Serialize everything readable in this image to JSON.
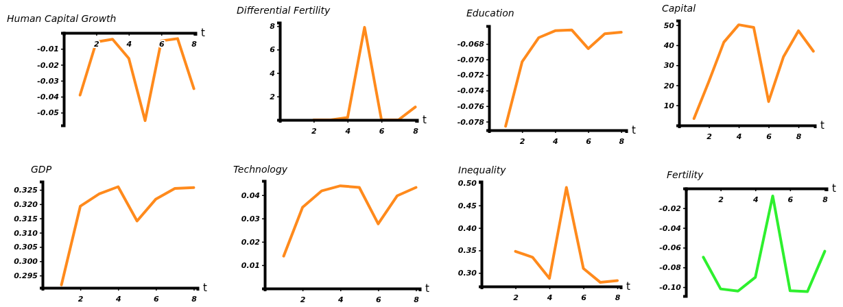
{
  "chart_data": [
    {
      "type": "line",
      "title": "Human Capital Growth",
      "xlabel": "t",
      "x": [
        1,
        2,
        3,
        4,
        5,
        6,
        7,
        8
      ],
      "values": [
        -0.039,
        -0.0057,
        -0.004,
        -0.016,
        -0.055,
        -0.005,
        -0.0036,
        -0.035
      ],
      "color": "#ff8a1c",
      "xlim": [
        0,
        8.1
      ],
      "xticks": [
        2,
        4,
        6,
        8
      ],
      "ylim": [
        -0.058,
        0
      ],
      "yticks": [
        -0.05,
        -0.04,
        -0.03,
        -0.02,
        -0.01
      ]
    },
    {
      "type": "line",
      "title": "Differential Fertility",
      "xlabel": "t",
      "x": [
        2,
        3,
        4,
        5,
        6,
        7,
        8
      ],
      "values": [
        0,
        0,
        0.2,
        7.9,
        0,
        0,
        1.1
      ],
      "color": "#ff8a1c",
      "xlim": [
        0,
        8.1
      ],
      "xticks": [
        2,
        4,
        6,
        8
      ],
      "ylim": [
        0,
        8.3
      ],
      "yticks": [
        2,
        4,
        6,
        8
      ]
    },
    {
      "type": "line",
      "title": "Education",
      "xlabel": "t",
      "x": [
        1,
        2,
        3,
        4,
        5,
        6,
        7,
        8
      ],
      "values": [
        -0.0786,
        -0.0703,
        -0.0672,
        -0.0663,
        -0.0662,
        -0.0686,
        -0.0667,
        -0.0665
      ],
      "color": "#ff8a1c",
      "xlim": [
        0,
        8.3
      ],
      "xticks": [
        2,
        4,
        6,
        8
      ],
      "ylim": [
        -0.0791,
        -0.0657
      ],
      "yticks": [
        -0.078,
        -0.076,
        -0.074,
        -0.072,
        {
          "value": -0.07,
          "label": "-0.070"
        },
        -0.068
      ]
    },
    {
      "type": "line",
      "title": "Capital",
      "xlabel": "t",
      "x": [
        1,
        2,
        3,
        4,
        5,
        6,
        7,
        8,
        9
      ],
      "values": [
        3.4,
        22,
        41.5,
        50.2,
        48.9,
        11.9,
        34.3,
        47.2,
        37
      ],
      "color": "#ff8a1c",
      "xlim": [
        0,
        9.1
      ],
      "xticks": [
        2,
        4,
        6,
        8
      ],
      "ylim": [
        0,
        52.3
      ],
      "yticks": [
        10,
        20,
        30,
        40,
        50
      ]
    },
    {
      "type": "line",
      "title": "GDP",
      "xlabel": "t",
      "x": [
        1,
        2,
        3,
        4,
        5,
        6,
        7,
        8
      ],
      "values": [
        0.2917,
        0.3193,
        0.3236,
        0.3261,
        0.3141,
        0.3218,
        0.3255,
        0.3258
      ],
      "color": "#ff8a1c",
      "xlim": [
        0,
        8.2
      ],
      "xticks": [
        2,
        4,
        6,
        8
      ],
      "ylim": [
        0.2907,
        0.3279
      ],
      "yticks": [
        0.295,
        {
          "value": 0.3,
          "label": "0.300"
        },
        0.305,
        {
          "value": 0.31,
          "label": "0.310"
        },
        0.315,
        {
          "value": 0.32,
          "label": "0.320"
        },
        0.325
      ]
    },
    {
      "type": "line",
      "title": "Technology",
      "xlabel": "t",
      "x": [
        1,
        2,
        3,
        4,
        5,
        6,
        7,
        8
      ],
      "values": [
        0.0139,
        0.0348,
        0.0418,
        0.044,
        0.0433,
        0.0277,
        0.0397,
        0.0433
      ],
      "color": "#ff8a1c",
      "xlim": [
        0,
        8.2
      ],
      "xticks": [
        2,
        4,
        6,
        8
      ],
      "ylim": [
        0,
        0.0461
      ],
      "yticks": [
        0.01,
        0.02,
        0.03,
        0.04
      ]
    },
    {
      "type": "line",
      "title": "Inequality",
      "xlabel": "t",
      "x": [
        2,
        3,
        4,
        5,
        6,
        7,
        8
      ],
      "values": [
        0.348,
        0.335,
        0.288,
        0.49,
        0.31,
        0.279,
        0.283
      ],
      "color": "#ff8a1c",
      "xlim": [
        0,
        8.2
      ],
      "xticks": [
        2,
        4,
        6,
        8
      ],
      "ylim": [
        0.27,
        0.503
      ],
      "yticks": [
        {
          "value": 0.3,
          "label": "0.30"
        },
        0.35,
        {
          "value": 0.4,
          "label": "0.40"
        },
        0.45,
        {
          "value": 0.5,
          "label": "0.50"
        }
      ]
    },
    {
      "type": "line",
      "title": "Fertility",
      "xlabel": "t",
      "x": [
        1,
        2,
        3,
        4,
        5,
        6,
        7,
        8
      ],
      "values": [
        -0.0696,
        -0.1018,
        -0.104,
        -0.09,
        -0.0076,
        -0.1037,
        -0.1045,
        -0.0636
      ],
      "color": "#2ef02e",
      "xlim": [
        0,
        8.1
      ],
      "xticks": [
        2,
        4,
        6,
        8
      ],
      "ylim": [
        -0.109,
        0
      ],
      "yticks": [
        {
          "value": -0.1,
          "label": "-0.10"
        },
        -0.08,
        -0.06,
        -0.04,
        -0.02
      ]
    }
  ]
}
